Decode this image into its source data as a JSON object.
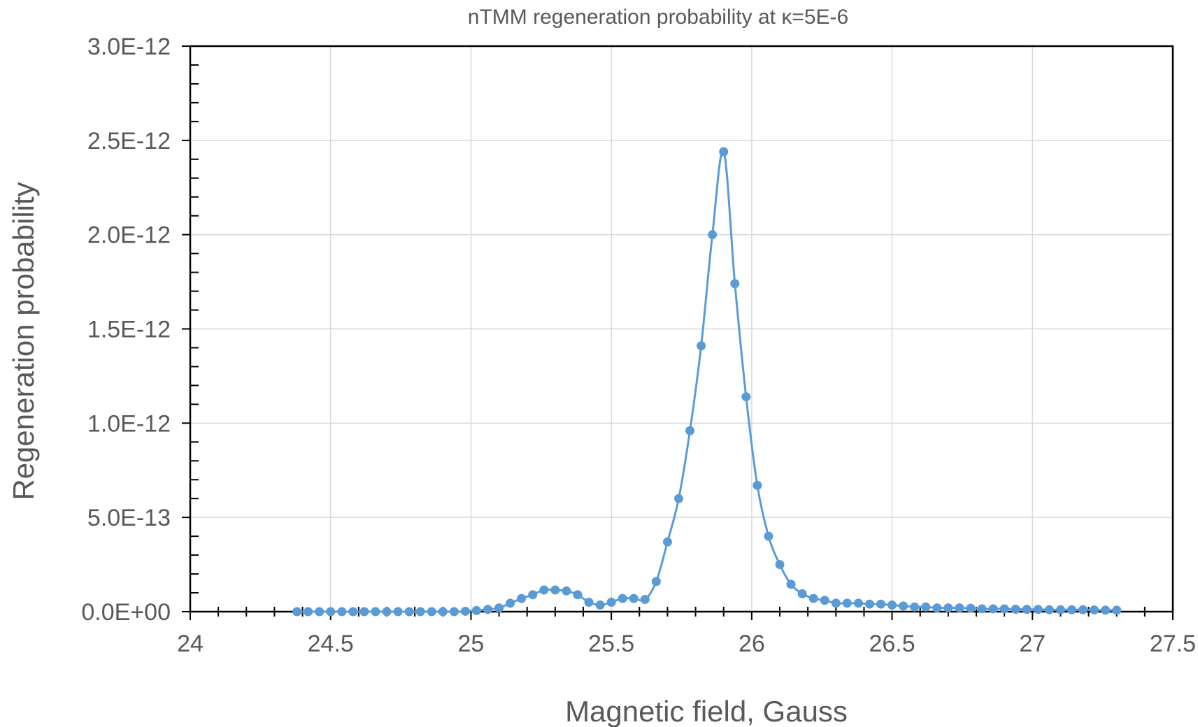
{
  "chart_data": {
    "type": "scatter",
    "title": "nTMM regeneration probability at κ=5E-6",
    "xlabel": "Magnetic field, Gauss",
    "ylabel": "Regeneration probability",
    "xlim": [
      24,
      27.5
    ],
    "ylim": [
      0,
      3e-12
    ],
    "x_ticks": [
      24,
      24.5,
      25,
      25.5,
      26,
      26.5,
      27,
      27.5
    ],
    "x_tick_labels": [
      "24",
      "24.5",
      "25",
      "25.5",
      "26",
      "26.5",
      "27",
      "27.5"
    ],
    "y_ticks": [
      0,
      5e-13,
      1e-12,
      1.5e-12,
      2e-12,
      2.5e-12,
      3e-12
    ],
    "y_tick_labels": [
      "0.0E+00",
      "5.0E-13",
      "1.0E-12",
      "1.5E-12",
      "2.0E-12",
      "2.5E-12",
      "3.0E-12"
    ],
    "grid": true,
    "line_style": "smooth line with markers",
    "color": "#5b9bd5",
    "series": [
      {
        "x": [
          24.38,
          24.42,
          24.46,
          24.5,
          24.54,
          24.58,
          24.62,
          24.66,
          24.7,
          24.74,
          24.78,
          24.82,
          24.86,
          24.9,
          24.94,
          24.98,
          25.02,
          25.06,
          25.1,
          25.14,
          25.18,
          25.22,
          25.26,
          25.3,
          25.34,
          25.38,
          25.42,
          25.46,
          25.5,
          25.54,
          25.58,
          25.62,
          25.66,
          25.7,
          25.74,
          25.78,
          25.82,
          25.86,
          25.9,
          25.94,
          25.98,
          26.02,
          26.06,
          26.1,
          26.14,
          26.18,
          26.22,
          26.26,
          26.3,
          26.34,
          26.38,
          26.42,
          26.46,
          26.5,
          26.54,
          26.58,
          26.62,
          26.66,
          26.7,
          26.74,
          26.78,
          26.82,
          26.86,
          26.9,
          26.94,
          26.98,
          27.02,
          27.06,
          27.1,
          27.14,
          27.18,
          27.22,
          27.26,
          27.3
        ],
        "y": [
          0,
          0,
          0,
          0,
          0,
          0,
          0,
          0,
          0,
          0,
          0,
          0,
          0,
          0,
          0,
          2e-15,
          6e-15,
          1.2e-14,
          2e-14,
          4.5e-14,
          7e-14,
          9e-14,
          1.15e-13,
          1.15e-13,
          1.1e-13,
          9e-14,
          5e-14,
          3.5e-14,
          5e-14,
          7e-14,
          7e-14,
          6.5e-14,
          1.6e-13,
          3.7e-13,
          6e-13,
          9.6e-13,
          1.41e-12,
          2e-12,
          2.44e-12,
          1.74e-12,
          1.14e-12,
          6.7e-13,
          4e-13,
          2.5e-13,
          1.45e-13,
          9.5e-14,
          7e-14,
          6e-14,
          4.5e-14,
          4.5e-14,
          4.5e-14,
          4e-14,
          4e-14,
          3.5e-14,
          3e-14,
          2.5e-14,
          2.5e-14,
          2e-14,
          2e-14,
          2e-14,
          1.8e-14,
          1.5e-14,
          1.5e-14,
          1.5e-14,
          1.3e-14,
          1.2e-14,
          1.2e-14,
          1e-14,
          1e-14,
          1e-14,
          1e-14,
          9e-15,
          8e-15,
          8e-15
        ]
      }
    ]
  }
}
